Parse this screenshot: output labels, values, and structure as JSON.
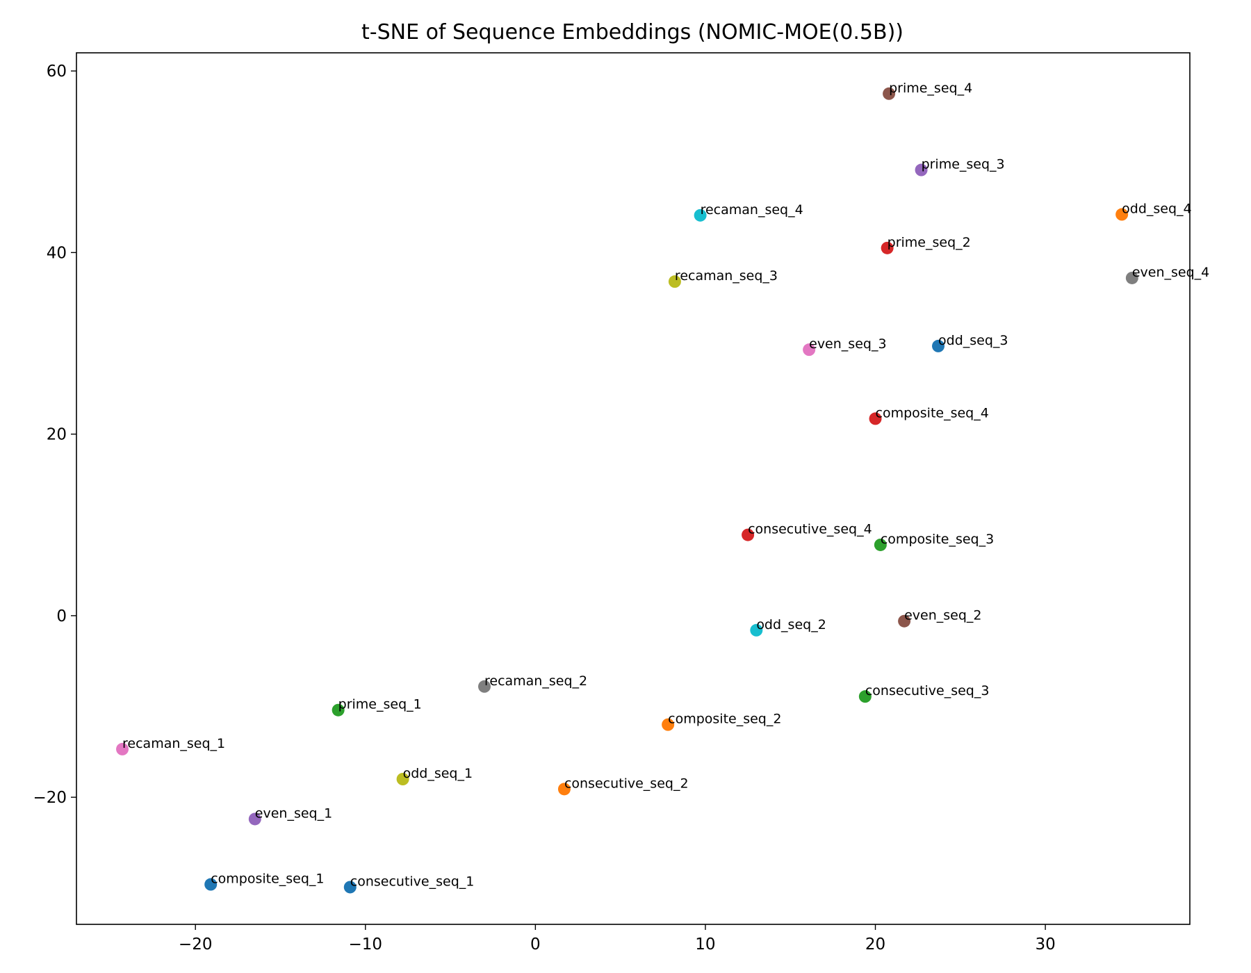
{
  "chart_data": {
    "type": "scatter",
    "title": "t-SNE of Sequence Embeddings (NOMIC-MOE(0.5B))",
    "xlabel": "",
    "ylabel": "",
    "xlim": [
      -27,
      38.5
    ],
    "ylim": [
      -34,
      62
    ],
    "x_ticks": [
      -20,
      -10,
      0,
      10,
      20,
      30
    ],
    "y_ticks": [
      -20,
      0,
      20,
      40,
      60
    ],
    "x_tick_labels": [
      "−20",
      "−10",
      "0",
      "10",
      "20",
      "30"
    ],
    "y_tick_labels": [
      "−20",
      "0",
      "20",
      "40",
      "60"
    ],
    "grid": false,
    "points": [
      {
        "label": "recaman_seq_1",
        "x": -24.3,
        "y": -14.7,
        "color": "#e377c2"
      },
      {
        "label": "even_seq_1",
        "x": -16.5,
        "y": -22.4,
        "color": "#9467bd"
      },
      {
        "label": "composite_seq_1",
        "x": -19.1,
        "y": -29.6,
        "color": "#1f77b4"
      },
      {
        "label": "consecutive_seq_1",
        "x": -10.9,
        "y": -29.9,
        "color": "#1f77b4"
      },
      {
        "label": "prime_seq_1",
        "x": -11.6,
        "y": -10.4,
        "color": "#2ca02c"
      },
      {
        "label": "odd_seq_1",
        "x": -7.8,
        "y": -18.0,
        "color": "#bcbd22"
      },
      {
        "label": "recaman_seq_2",
        "x": -3.0,
        "y": -7.8,
        "color": "#7f7f7f"
      },
      {
        "label": "consecutive_seq_2",
        "x": 1.7,
        "y": -19.1,
        "color": "#ff7f0e"
      },
      {
        "label": "composite_seq_2",
        "x": 7.8,
        "y": -12.0,
        "color": "#ff7f0e"
      },
      {
        "label": "odd_seq_2",
        "x": 13.0,
        "y": -1.6,
        "color": "#17becf"
      },
      {
        "label": "consecutive_seq_4",
        "x": 12.5,
        "y": 8.9,
        "color": "#d62728"
      },
      {
        "label": "composite_seq_3",
        "x": 20.3,
        "y": 7.8,
        "color": "#2ca02c"
      },
      {
        "label": "even_seq_2",
        "x": 21.7,
        "y": -0.6,
        "color": "#8c564b"
      },
      {
        "label": "consecutive_seq_3",
        "x": 19.4,
        "y": -8.9,
        "color": "#2ca02c"
      },
      {
        "label": "composite_seq_4",
        "x": 20.0,
        "y": 21.7,
        "color": "#d62728"
      },
      {
        "label": "even_seq_3",
        "x": 16.1,
        "y": 29.3,
        "color": "#e377c2"
      },
      {
        "label": "odd_seq_3",
        "x": 23.7,
        "y": 29.7,
        "color": "#1f77b4"
      },
      {
        "label": "recaman_seq_3",
        "x": 8.2,
        "y": 36.8,
        "color": "#bcbd22"
      },
      {
        "label": "recaman_seq_4",
        "x": 9.7,
        "y": 44.1,
        "color": "#17becf"
      },
      {
        "label": "prime_seq_2",
        "x": 20.7,
        "y": 40.5,
        "color": "#d62728"
      },
      {
        "label": "prime_seq_3",
        "x": 22.7,
        "y": 49.1,
        "color": "#9467bd"
      },
      {
        "label": "prime_seq_4",
        "x": 20.8,
        "y": 57.5,
        "color": "#8c564b"
      },
      {
        "label": "odd_seq_4",
        "x": 34.5,
        "y": 44.2,
        "color": "#ff7f0e"
      },
      {
        "label": "even_seq_4",
        "x": 35.1,
        "y": 37.2,
        "color": "#7f7f7f"
      }
    ]
  }
}
